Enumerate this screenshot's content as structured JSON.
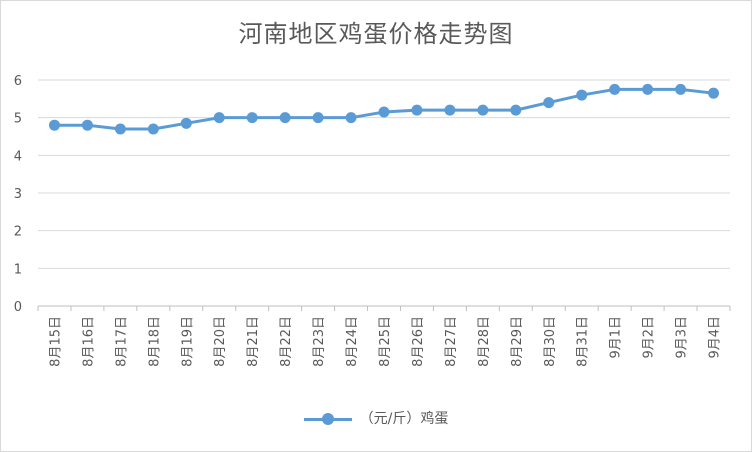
{
  "chart_data": {
    "type": "line",
    "title": "河南地区鸡蛋价格走势图",
    "xlabel": "",
    "ylabel": "",
    "ylim": [
      0,
      6
    ],
    "yticks": [
      "0",
      "1",
      "2",
      "3",
      "4",
      "5",
      "6"
    ],
    "grid": true,
    "legend_position": "bottom",
    "categories": [
      "8月15日",
      "8月16日",
      "8月17日",
      "8月18日",
      "8月19日",
      "8月20日",
      "8月21日",
      "8月22日",
      "8月23日",
      "8月24日",
      "8月25日",
      "8月26日",
      "8月27日",
      "8月28日",
      "8月29日",
      "8月30日",
      "8月31日",
      "9月1日",
      "9月2日",
      "9月3日",
      "9月4日"
    ],
    "series": [
      {
        "name": "（元/斤）鸡蛋",
        "color": "#5b9bd5",
        "values": [
          4.8,
          4.8,
          4.7,
          4.7,
          4.85,
          5.0,
          5.0,
          5.0,
          5.0,
          5.0,
          5.15,
          5.2,
          5.2,
          5.2,
          5.2,
          5.4,
          5.6,
          5.75,
          5.75,
          5.75,
          5.65
        ]
      }
    ]
  }
}
